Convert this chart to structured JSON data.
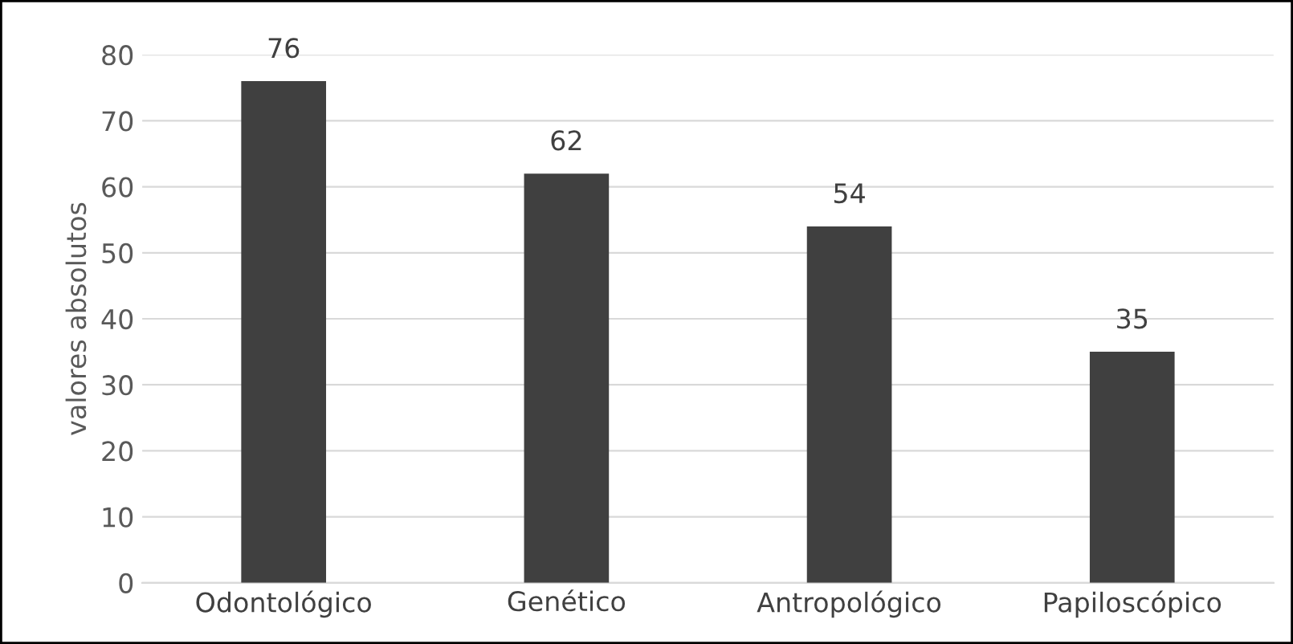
{
  "chart_data": {
    "type": "bar",
    "ylabel": "valores absolutos",
    "categories": [
      "Odontológico",
      "Genético",
      "Antropológico",
      "Papiloscópico"
    ],
    "values": [
      76,
      62,
      54,
      35
    ],
    "color": "#404040",
    "ylim": [
      0,
      80
    ],
    "yticks": [
      0,
      10,
      20,
      30,
      40,
      50,
      60,
      70,
      80
    ],
    "grid": "y",
    "data_labels": true
  }
}
